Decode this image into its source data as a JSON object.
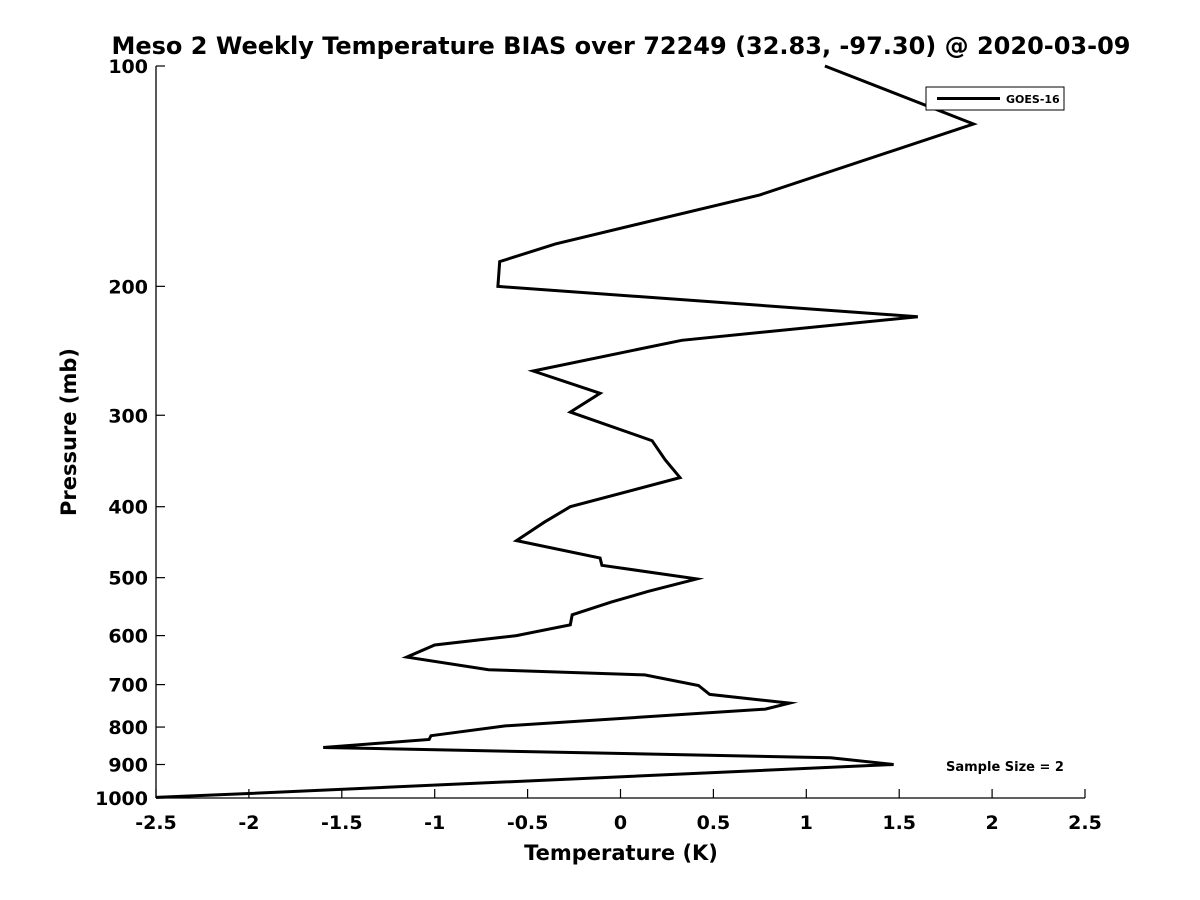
{
  "chart_data": {
    "type": "line",
    "title": "Meso 2 Weekly Temperature BIAS over 72249 (32.83, -97.30) @ 2020-03-09",
    "xlabel": "Temperature (K)",
    "ylabel": "Pressure (mb)",
    "xlim": [
      -2.5,
      2.5
    ],
    "ylim": [
      100,
      1000
    ],
    "y_scale": "log",
    "y_reversed": true,
    "grid": false,
    "legend_position": "top-right",
    "x_ticks": [
      -2.5,
      -2,
      -1.5,
      -1,
      -0.5,
      0,
      0.5,
      1,
      1.5,
      2,
      2.5
    ],
    "x_tick_labels": [
      "-2.5",
      "-2",
      "-1.5",
      "-1",
      "-0.5",
      "0",
      "0.5",
      "1",
      "1.5",
      "2",
      "2.5"
    ],
    "y_ticks": [
      100,
      200,
      300,
      400,
      500,
      600,
      700,
      800,
      900,
      1000
    ],
    "y_tick_labels": [
      "100",
      "200",
      "300",
      "400",
      "500",
      "600",
      "700",
      "800",
      "900",
      "1000"
    ],
    "series": [
      {
        "name": "GOES-16",
        "color": "#000000",
        "points": [
          [
            1.1,
            100
          ],
          [
            1.9,
            120
          ],
          [
            0.75,
            150
          ],
          [
            -0.35,
            175
          ],
          [
            -0.65,
            185
          ],
          [
            -0.66,
            200
          ],
          [
            1.6,
            220
          ],
          [
            0.33,
            237
          ],
          [
            -0.47,
            261
          ],
          [
            -0.11,
            280
          ],
          [
            -0.27,
            297
          ],
          [
            0.17,
            325
          ],
          [
            0.24,
            345
          ],
          [
            0.32,
            365
          ],
          [
            -0.27,
            400
          ],
          [
            -0.41,
            420
          ],
          [
            -0.56,
            445
          ],
          [
            -0.11,
            470
          ],
          [
            -0.1,
            481
          ],
          [
            0.41,
            502
          ],
          [
            0.15,
            522
          ],
          [
            -0.05,
            540
          ],
          [
            -0.26,
            562
          ],
          [
            -0.27,
            580
          ],
          [
            -0.56,
            600
          ],
          [
            -1.0,
            618
          ],
          [
            -1.15,
            642
          ],
          [
            -0.71,
            668
          ],
          [
            0.13,
            679
          ],
          [
            0.42,
            702
          ],
          [
            0.48,
            722
          ],
          [
            0.91,
            742
          ],
          [
            0.78,
            756
          ],
          [
            -0.62,
            797
          ],
          [
            -1.02,
            822
          ],
          [
            -1.03,
            832
          ],
          [
            -1.6,
            853
          ],
          [
            1.13,
            881
          ],
          [
            1.47,
            900
          ],
          [
            -2.0,
            986
          ],
          [
            -2.5,
            998
          ]
        ]
      }
    ],
    "annotation": "Sample Size = 2"
  }
}
